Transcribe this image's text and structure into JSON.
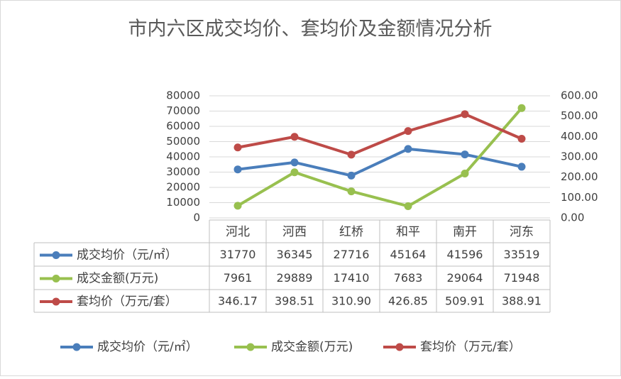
{
  "chart_data": {
    "type": "line",
    "title": "市内六区成交均价、套均价及金额情况分析",
    "categories": [
      "河北",
      "河西",
      "红桥",
      "和平",
      "南开",
      "河东"
    ],
    "series": [
      {
        "name": "成交均价（元/㎡）",
        "color": "#4a7ebb",
        "values": [
          31770,
          36345,
          27716,
          45164,
          41596,
          33519
        ]
      },
      {
        "name": "成交金额(万元)",
        "color": "#98c04f",
        "values": [
          7961,
          29889,
          17410,
          7683,
          29064,
          71948
        ]
      },
      {
        "name": "套均价（万元/套）",
        "color": "#be4b48",
        "axis": "y2",
        "values": [
          346.17,
          398.51,
          310.9,
          426.85,
          509.91,
          388.91
        ],
        "value_labels": [
          "346.17",
          "398.51",
          "310.90",
          "426.85",
          "509.91",
          "388.91"
        ]
      }
    ],
    "ylim": [
      0,
      80000
    ],
    "yticks": [
      0,
      10000,
      20000,
      30000,
      40000,
      50000,
      60000,
      70000,
      80000
    ],
    "y2lim": [
      0,
      600
    ],
    "y2ticks": [
      {
        "value": 0,
        "label": "0.00"
      },
      {
        "value": 100,
        "label": "100.00"
      },
      {
        "value": 200,
        "label": "200.00"
      },
      {
        "value": 300,
        "label": "300.00"
      },
      {
        "value": 400,
        "label": "400.00"
      },
      {
        "value": 500,
        "label": "500.00"
      },
      {
        "value": 600,
        "label": "600.00"
      }
    ],
    "grid": true,
    "legend": "bottom"
  }
}
